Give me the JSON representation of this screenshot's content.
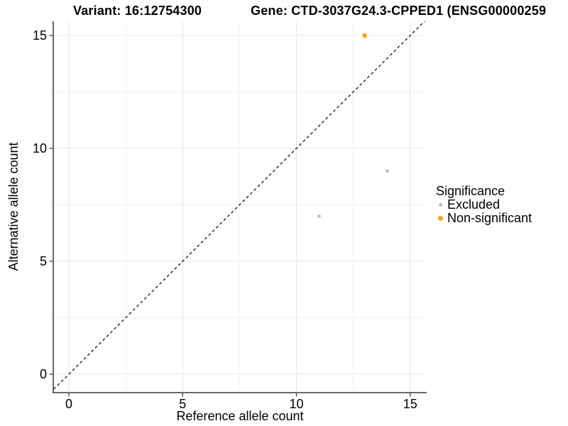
{
  "header": {
    "variant_title": "Variant: 16:12754300",
    "gene_title": "Gene: CTD-3037G24.3-CPPED1 (ENSG00000259"
  },
  "chart_data": {
    "type": "scatter",
    "xlabel": "Reference allele count",
    "ylabel": "Alternative allele count",
    "x_ticks": [
      0,
      5,
      10,
      15
    ],
    "y_ticks": [
      0,
      5,
      10,
      15
    ],
    "xlim": [
      -0.75,
      15.75
    ],
    "ylim": [
      -0.75,
      15.75
    ],
    "grid": "major and minor gridlines, light gray, white background",
    "reference_line": {
      "type": "identity y=x",
      "style": "dashed",
      "color": "#111111"
    },
    "legend": {
      "title": "Significance",
      "position": "right"
    },
    "series": [
      {
        "name": "Excluded",
        "color": "#BCBCBC",
        "point_radius": 2.3,
        "points": [
          {
            "x": 11,
            "y": 7
          },
          {
            "x": 14,
            "y": 9
          }
        ]
      },
      {
        "name": "Non-significant",
        "color": "#FFA219",
        "point_radius": 3.4,
        "points": [
          {
            "x": 13,
            "y": 15
          }
        ]
      }
    ],
    "colors": {
      "grid_major": "#e8e8e8",
      "grid_minor": "#f1f1f1",
      "axis_line": "#555555",
      "tick": "#333333",
      "text": "#000000"
    }
  }
}
